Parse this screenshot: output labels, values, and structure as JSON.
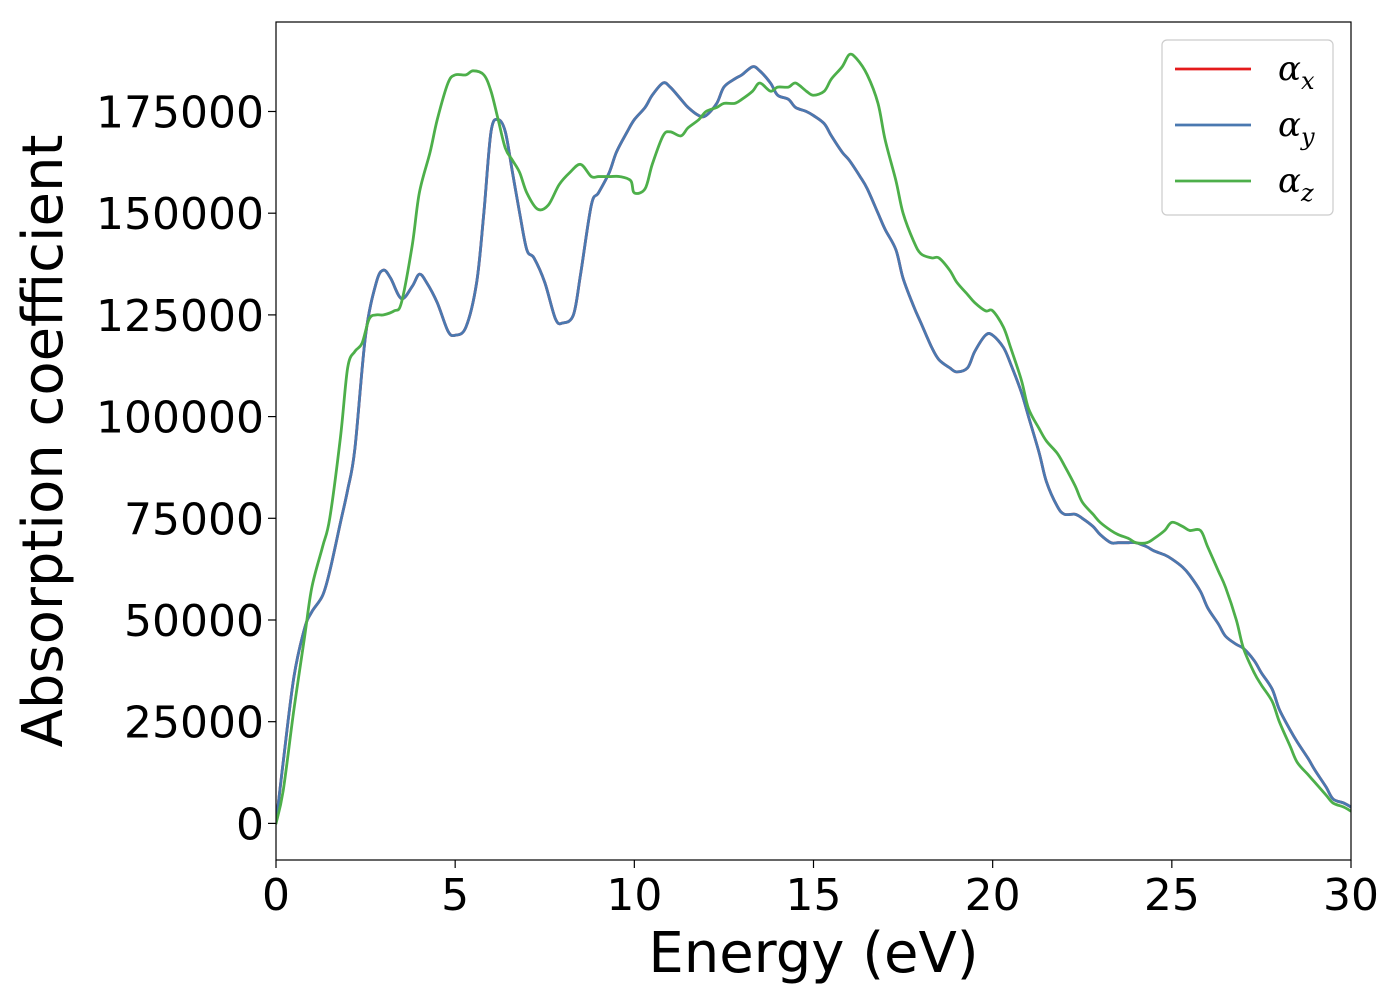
{
  "chart_data": {
    "type": "line",
    "title": "",
    "xlabel": "Energy (eV)",
    "ylabel": "Absorption coefficient",
    "xlim": [
      0,
      30
    ],
    "ylim": [
      -9000,
      197000
    ],
    "xticks": [
      0,
      5,
      10,
      15,
      20,
      25,
      30
    ],
    "yticks": [
      0,
      25000,
      50000,
      75000,
      100000,
      125000,
      150000,
      175000
    ],
    "grid": false,
    "legend_position": "top-right",
    "legend": [
      {
        "symbol": "α",
        "subscript": "x",
        "color": "#e41a1c"
      },
      {
        "symbol": "α",
        "subscript": "y",
        "color": "#4a79b0"
      },
      {
        "symbol": "α",
        "subscript": "z",
        "color": "#4daf4a"
      }
    ],
    "series": [
      {
        "name": "αx",
        "color": "#e41a1c",
        "x": [
          0,
          0.2,
          0.5,
          0.8,
          1.0,
          1.3,
          1.5,
          1.8,
          2.0,
          2.2,
          2.5,
          2.8,
          3.0,
          3.2,
          3.5,
          3.8,
          4.0,
          4.2,
          4.5,
          4.8,
          5.0,
          5.3,
          5.6,
          5.8,
          6.0,
          6.2,
          6.4,
          6.6,
          6.8,
          7.0,
          7.2,
          7.5,
          7.8,
          8.0,
          8.3,
          8.5,
          8.8,
          9.0,
          9.3,
          9.5,
          9.8,
          10.0,
          10.3,
          10.5,
          10.8,
          11.0,
          11.3,
          11.5,
          11.8,
          12.0,
          12.3,
          12.5,
          12.8,
          13.0,
          13.3,
          13.5,
          13.8,
          14.0,
          14.3,
          14.5,
          14.8,
          15.0,
          15.3,
          15.5,
          15.8,
          16.0,
          16.3,
          16.5,
          16.8,
          17.0,
          17.3,
          17.5,
          17.8,
          18.0,
          18.3,
          18.5,
          18.8,
          19.0,
          19.3,
          19.5,
          19.8,
          20.0,
          20.3,
          20.5,
          20.8,
          21.0,
          21.3,
          21.5,
          21.8,
          22.0,
          22.3,
          22.5,
          22.8,
          23.0,
          23.3,
          23.5,
          23.8,
          24.0,
          24.3,
          24.5,
          24.8,
          25.0,
          25.3,
          25.5,
          25.8,
          26.0,
          26.3,
          26.5,
          26.8,
          27.0,
          27.3,
          27.5,
          27.8,
          28.0,
          28.3,
          28.5,
          28.8,
          29.0,
          29.3,
          29.5,
          29.8,
          30.0
        ],
        "y": [
          0,
          15000,
          36000,
          48000,
          52000,
          56000,
          62000,
          74000,
          82000,
          92000,
          120000,
          133000,
          136000,
          134000,
          129000,
          132000,
          135000,
          133000,
          128000,
          121000,
          120000,
          122000,
          133000,
          150000,
          170000,
          173000,
          170000,
          160000,
          150000,
          141000,
          139000,
          133000,
          124000,
          123000,
          125000,
          135000,
          152000,
          155000,
          160000,
          165000,
          170000,
          173000,
          176000,
          179000,
          182000,
          181000,
          178000,
          176000,
          174000,
          174000,
          177000,
          181000,
          183000,
          184000,
          186000,
          185000,
          182000,
          179000,
          178000,
          176000,
          175000,
          174000,
          172000,
          169000,
          165000,
          163000,
          159000,
          156000,
          150000,
          146000,
          141000,
          134000,
          127000,
          123000,
          117000,
          114000,
          112000,
          111000,
          112000,
          116000,
          120000,
          120000,
          117000,
          113000,
          106000,
          100000,
          91000,
          84000,
          78000,
          76000,
          76000,
          75000,
          73000,
          71000,
          69000,
          69000,
          69000,
          69000,
          68000,
          67000,
          66000,
          65000,
          63000,
          61000,
          57000,
          53000,
          49000,
          46000,
          44000,
          43000,
          40000,
          37000,
          33000,
          28000,
          23000,
          20000,
          16000,
          13000,
          9000,
          6000,
          5000,
          4000
        ]
      },
      {
        "name": "αy",
        "color": "#4a79b0",
        "x": [
          0,
          0.2,
          0.5,
          0.8,
          1.0,
          1.3,
          1.5,
          1.8,
          2.0,
          2.2,
          2.5,
          2.8,
          3.0,
          3.2,
          3.5,
          3.8,
          4.0,
          4.2,
          4.5,
          4.8,
          5.0,
          5.3,
          5.6,
          5.8,
          6.0,
          6.2,
          6.4,
          6.6,
          6.8,
          7.0,
          7.2,
          7.5,
          7.8,
          8.0,
          8.3,
          8.5,
          8.8,
          9.0,
          9.3,
          9.5,
          9.8,
          10.0,
          10.3,
          10.5,
          10.8,
          11.0,
          11.3,
          11.5,
          11.8,
          12.0,
          12.3,
          12.5,
          12.8,
          13.0,
          13.3,
          13.5,
          13.8,
          14.0,
          14.3,
          14.5,
          14.8,
          15.0,
          15.3,
          15.5,
          15.8,
          16.0,
          16.3,
          16.5,
          16.8,
          17.0,
          17.3,
          17.5,
          17.8,
          18.0,
          18.3,
          18.5,
          18.8,
          19.0,
          19.3,
          19.5,
          19.8,
          20.0,
          20.3,
          20.5,
          20.8,
          21.0,
          21.3,
          21.5,
          21.8,
          22.0,
          22.3,
          22.5,
          22.8,
          23.0,
          23.3,
          23.5,
          23.8,
          24.0,
          24.3,
          24.5,
          24.8,
          25.0,
          25.3,
          25.5,
          25.8,
          26.0,
          26.3,
          26.5,
          26.8,
          27.0,
          27.3,
          27.5,
          27.8,
          28.0,
          28.3,
          28.5,
          28.8,
          29.0,
          29.3,
          29.5,
          29.8,
          30.0
        ],
        "y": [
          0,
          15000,
          36000,
          48000,
          52000,
          56000,
          62000,
          74000,
          82000,
          92000,
          120000,
          133000,
          136000,
          134000,
          129000,
          132000,
          135000,
          133000,
          128000,
          121000,
          120000,
          122000,
          133000,
          150000,
          170000,
          173000,
          170000,
          160000,
          150000,
          141000,
          139000,
          133000,
          124000,
          123000,
          125000,
          135000,
          152000,
          155000,
          160000,
          165000,
          170000,
          173000,
          176000,
          179000,
          182000,
          181000,
          178000,
          176000,
          174000,
          174000,
          177000,
          181000,
          183000,
          184000,
          186000,
          185000,
          182000,
          179000,
          178000,
          176000,
          175000,
          174000,
          172000,
          169000,
          165000,
          163000,
          159000,
          156000,
          150000,
          146000,
          141000,
          134000,
          127000,
          123000,
          117000,
          114000,
          112000,
          111000,
          112000,
          116000,
          120000,
          120000,
          117000,
          113000,
          106000,
          100000,
          91000,
          84000,
          78000,
          76000,
          76000,
          75000,
          73000,
          71000,
          69000,
          69000,
          69000,
          69000,
          68000,
          67000,
          66000,
          65000,
          63000,
          61000,
          57000,
          53000,
          49000,
          46000,
          44000,
          43000,
          40000,
          37000,
          33000,
          28000,
          23000,
          20000,
          16000,
          13000,
          9000,
          6000,
          5000,
          4000
        ]
      },
      {
        "name": "αz",
        "color": "#4daf4a",
        "x": [
          0,
          0.2,
          0.5,
          0.8,
          1.0,
          1.3,
          1.5,
          1.8,
          2.0,
          2.2,
          2.4,
          2.6,
          2.8,
          3.0,
          3.3,
          3.5,
          3.8,
          4.0,
          4.3,
          4.5,
          4.8,
          5.0,
          5.3,
          5.5,
          5.8,
          6.0,
          6.2,
          6.4,
          6.6,
          6.8,
          7.0,
          7.3,
          7.6,
          7.9,
          8.2,
          8.5,
          8.8,
          9.0,
          9.3,
          9.6,
          9.9,
          10.0,
          10.3,
          10.5,
          10.8,
          11.0,
          11.3,
          11.5,
          11.8,
          12.0,
          12.3,
          12.5,
          12.8,
          13.0,
          13.3,
          13.5,
          13.8,
          14.0,
          14.3,
          14.5,
          14.8,
          15.0,
          15.3,
          15.5,
          15.8,
          16.0,
          16.2,
          16.5,
          16.8,
          17.0,
          17.3,
          17.5,
          17.8,
          18.0,
          18.3,
          18.5,
          18.8,
          19.0,
          19.3,
          19.5,
          19.8,
          20.0,
          20.3,
          20.5,
          20.8,
          21.0,
          21.3,
          21.5,
          21.8,
          22.0,
          22.3,
          22.5,
          22.8,
          23.0,
          23.3,
          23.5,
          23.8,
          24.0,
          24.3,
          24.5,
          24.8,
          25.0,
          25.3,
          25.5,
          25.8,
          26.0,
          26.3,
          26.5,
          26.8,
          27.0,
          27.3,
          27.5,
          27.8,
          28.0,
          28.3,
          28.5,
          28.8,
          29.0,
          29.3,
          29.5,
          29.8,
          30.0
        ],
        "y": [
          0,
          8000,
          28000,
          46000,
          58000,
          68000,
          75000,
          95000,
          112000,
          116000,
          118000,
          124000,
          125000,
          125000,
          126000,
          128000,
          142000,
          155000,
          165000,
          173000,
          182000,
          184000,
          184000,
          185000,
          184000,
          180000,
          173000,
          166000,
          163000,
          160000,
          155000,
          151000,
          152000,
          157000,
          160000,
          162000,
          159000,
          159000,
          159000,
          159000,
          158000,
          155000,
          156000,
          162000,
          169000,
          170000,
          169000,
          171000,
          173000,
          175000,
          176000,
          177000,
          177000,
          178000,
          180000,
          182000,
          180000,
          181000,
          181000,
          182000,
          180000,
          179000,
          180000,
          183000,
          186000,
          189000,
          188000,
          184000,
          177000,
          168000,
          158000,
          150000,
          143000,
          140000,
          139000,
          139000,
          136000,
          133000,
          130000,
          128000,
          126000,
          126000,
          122000,
          117000,
          109000,
          102000,
          97000,
          94000,
          91000,
          88000,
          83000,
          79000,
          76000,
          74000,
          72000,
          71000,
          70000,
          69000,
          69000,
          70000,
          72000,
          74000,
          73000,
          72000,
          72000,
          68000,
          62000,
          58000,
          50000,
          43000,
          37000,
          34000,
          30000,
          25000,
          19000,
          15000,
          12000,
          10000,
          7000,
          5000,
          4000,
          3000
        ]
      }
    ]
  }
}
